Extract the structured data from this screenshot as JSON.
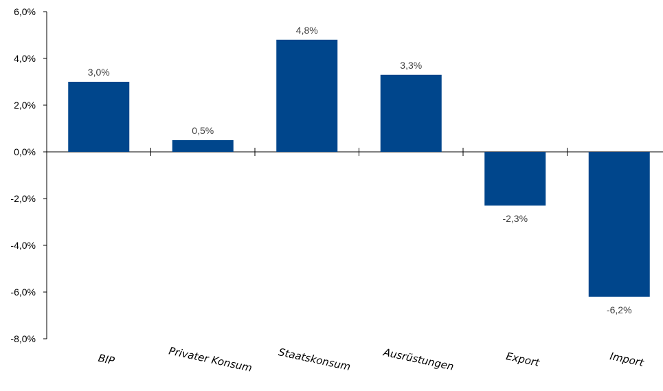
{
  "chart_data": {
    "type": "bar",
    "categories": [
      "BIP",
      "Privater Konsum",
      "Staatskonsum",
      "Ausrüstungen",
      "Export",
      "Import"
    ],
    "values": [
      3.0,
      0.5,
      4.8,
      3.3,
      -2.3,
      -6.2
    ],
    "value_labels": [
      "3,0%",
      "0,5%",
      "4,8%",
      "3,3%",
      "-2,3%",
      "-6,2%"
    ],
    "ylim": [
      -8,
      6
    ],
    "yticks": [
      6,
      4,
      2,
      0,
      -2,
      -4,
      -6,
      -8
    ],
    "ytick_labels": [
      "6,0%",
      "4,0%",
      "2,0%",
      "0,0%",
      "-2,0%",
      "-4,0%",
      "-6,0%",
      "-8,0%"
    ],
    "title": "",
    "xlabel": "",
    "ylabel": "",
    "grid": false,
    "legend": "none",
    "bar_color": "#00468c"
  }
}
